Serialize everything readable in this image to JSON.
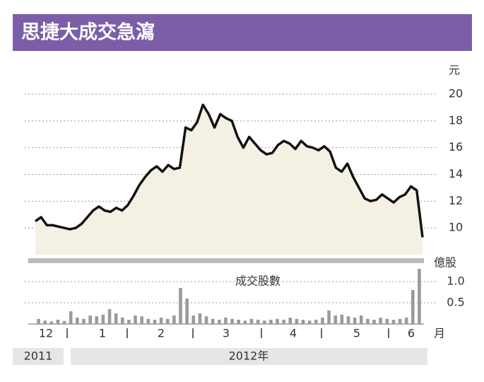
{
  "chart_data": [
    {
      "type": "line",
      "title": "思捷大成交急瀉",
      "unit": "元",
      "values": [
        10.5,
        10.8,
        10.2,
        10.2,
        10.1,
        10.0,
        9.9,
        10.0,
        10.3,
        10.8,
        11.3,
        11.6,
        11.3,
        11.2,
        11.5,
        11.3,
        11.7,
        12.4,
        13.2,
        13.8,
        14.3,
        14.6,
        14.2,
        14.7,
        14.4,
        14.5,
        17.5,
        17.3,
        17.9,
        19.2,
        18.5,
        17.5,
        18.5,
        18.2,
        18.0,
        16.8,
        16.0,
        16.8,
        16.3,
        15.8,
        15.5,
        15.6,
        16.2,
        16.5,
        16.3,
        15.9,
        16.5,
        16.1,
        16.0,
        15.8,
        16.1,
        15.7,
        14.5,
        14.2,
        14.8,
        13.8,
        13.0,
        12.2,
        12.0,
        12.1,
        12.5,
        12.2,
        11.9,
        12.3,
        12.5,
        13.1,
        12.8,
        9.3
      ],
      "color": "#111111",
      "fill": "#f4f0e4",
      "ylim": [
        8,
        20
      ],
      "yticks": [
        10,
        12,
        14,
        16,
        18,
        20
      ],
      "grid": true
    },
    {
      "type": "bar",
      "title": "成交股數",
      "unit": "億股",
      "values": [
        0.12,
        0.08,
        0.06,
        0.1,
        0.07,
        0.3,
        0.15,
        0.12,
        0.2,
        0.18,
        0.22,
        0.35,
        0.25,
        0.15,
        0.1,
        0.2,
        0.18,
        0.12,
        0.1,
        0.15,
        0.12,
        0.2,
        0.85,
        0.6,
        0.2,
        0.25,
        0.18,
        0.12,
        0.1,
        0.15,
        0.12,
        0.1,
        0.08,
        0.12,
        0.1,
        0.08,
        0.1,
        0.12,
        0.1,
        0.15,
        0.12,
        0.1,
        0.08,
        0.1,
        0.15,
        0.32,
        0.2,
        0.22,
        0.18,
        0.15,
        0.2,
        0.12,
        0.1,
        0.15,
        0.12,
        0.1,
        0.12,
        0.15,
        0.8,
        1.3
      ],
      "color": "#9a9a9a",
      "ylim": [
        0,
        1.3
      ],
      "yticks": [
        0.5,
        {
          "value": 1.0,
          "label": "1.0"
        }
      ],
      "grid": true,
      "month_labels": [
        "12",
        "1",
        "2",
        "3",
        "4",
        "5",
        "6"
      ],
      "month_unit": "月",
      "years": [
        "2011",
        "2012年"
      ]
    }
  ]
}
